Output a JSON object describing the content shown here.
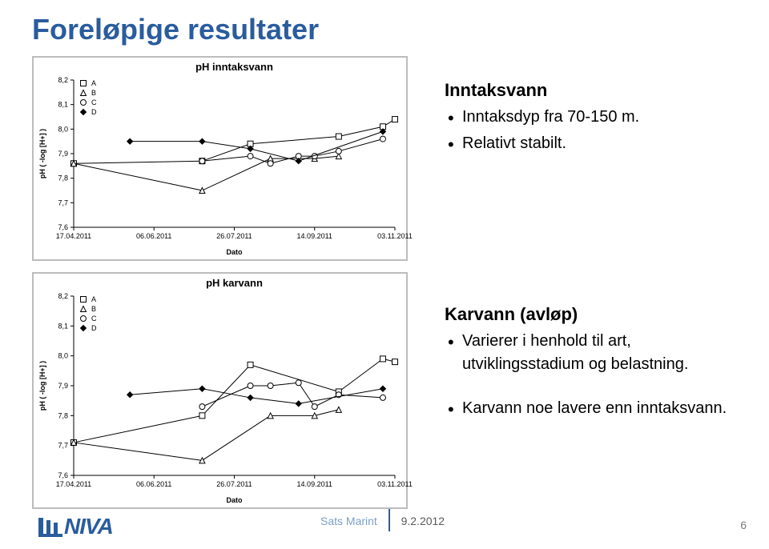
{
  "title": "Foreløpige resultater",
  "text": {
    "inntaksvann": {
      "heading": "Inntaksvann",
      "bullets": [
        "Inntaksdyp fra 70-150 m.",
        "Relativt stabilt."
      ]
    },
    "karvann": {
      "heading": "Karvann (avløp)",
      "bullets": [
        "Varierer i henhold til art, utviklingsstadium og belastning.",
        "Karvann noe lavere enn inntaksvann."
      ]
    }
  },
  "footer": {
    "logo": "NIVA",
    "event": "Sats Marint",
    "date": "9.2.2012",
    "page": "6"
  },
  "palette": {
    "line_color": "#000000",
    "axis_color": "#000000",
    "title_color": "#000000",
    "bg": "#ffffff"
  },
  "chart1": {
    "type": "scatter",
    "title": "pH inntaksvann",
    "title_fontsize": 13,
    "title_weight": "bold",
    "ylabel": "pH ( -log [H+] )",
    "xlabel": "Dato",
    "label_fontsize": 9,
    "tick_fontsize": 9,
    "ylim": [
      7.6,
      8.2
    ],
    "ytick_step": 0.1,
    "x_categories": [
      "17.04.2011",
      "06.06.2011",
      "26.07.2011",
      "14.09.2011",
      "03.11.2011"
    ],
    "marker_size": 7,
    "marker_stroke": "#000000",
    "marker_fill": "#ffffff",
    "legend_pos": "top-left",
    "series": [
      {
        "name": "A",
        "marker": "square",
        "x": [
          0,
          1.6,
          2.2,
          3.3,
          3.85,
          4.0
        ],
        "y": [
          7.86,
          7.87,
          7.94,
          7.97,
          8.01,
          8.04
        ]
      },
      {
        "name": "B",
        "marker": "triangle",
        "x": [
          0,
          1.6,
          2.45,
          3.0,
          3.3
        ],
        "y": [
          7.86,
          7.75,
          7.88,
          7.88,
          7.89
        ]
      },
      {
        "name": "C",
        "marker": "circle",
        "x": [
          1.6,
          2.2,
          2.45,
          2.8,
          3.0,
          3.3,
          3.85
        ],
        "y": [
          7.87,
          7.89,
          7.86,
          7.89,
          7.89,
          7.91,
          7.96
        ]
      },
      {
        "name": "D",
        "marker": "diamond",
        "x": [
          0.7,
          1.6,
          2.2,
          2.8,
          3.85
        ],
        "y": [
          7.95,
          7.95,
          7.92,
          7.87,
          7.99
        ]
      }
    ]
  },
  "chart2": {
    "type": "scatter",
    "title": "pH karvann",
    "title_fontsize": 13,
    "title_weight": "bold",
    "ylabel": "pH ( -log [H+] )",
    "xlabel": "Dato",
    "label_fontsize": 9,
    "tick_fontsize": 9,
    "ylim": [
      7.6,
      8.2
    ],
    "ytick_step": 0.1,
    "x_categories": [
      "17.04.2011",
      "06.06.2011",
      "26.07.2011",
      "14.09.2011",
      "03.11.2011"
    ],
    "marker_size": 7,
    "marker_stroke": "#000000",
    "marker_fill": "#ffffff",
    "legend_pos": "top-left",
    "series": [
      {
        "name": "A",
        "marker": "square",
        "x": [
          0,
          1.6,
          2.2,
          3.3,
          3.85,
          4.0
        ],
        "y": [
          7.71,
          7.8,
          7.97,
          7.88,
          7.99,
          7.98
        ]
      },
      {
        "name": "B",
        "marker": "triangle",
        "x": [
          0,
          1.6,
          2.45,
          3.0,
          3.3
        ],
        "y": [
          7.71,
          7.65,
          7.8,
          7.8,
          7.82
        ]
      },
      {
        "name": "C",
        "marker": "circle",
        "x": [
          1.6,
          2.2,
          2.45,
          2.8,
          3.0,
          3.3,
          3.85
        ],
        "y": [
          7.83,
          7.9,
          7.9,
          7.91,
          7.83,
          7.87,
          7.86
        ]
      },
      {
        "name": "D",
        "marker": "diamond",
        "x": [
          0.7,
          1.6,
          2.2,
          2.8,
          3.85
        ],
        "y": [
          7.87,
          7.89,
          7.86,
          7.84,
          7.89
        ]
      }
    ]
  }
}
